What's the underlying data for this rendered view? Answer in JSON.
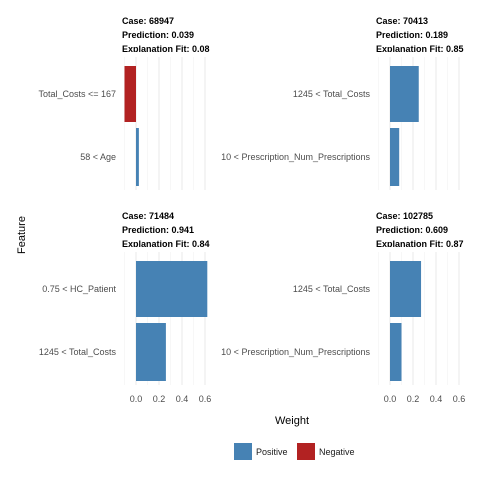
{
  "y_axis_label": "Feature",
  "x_axis_label": "Weight",
  "legend": {
    "items": [
      {
        "label": "Positive",
        "color": "#4682B4"
      },
      {
        "label": "Negative",
        "color": "#B22222"
      }
    ]
  },
  "chart_data": {
    "type": "bar",
    "orientation": "horizontal",
    "grid": true,
    "xlabel": "Weight",
    "ylabel": "Feature",
    "xlim": [
      -0.1,
      0.6
    ],
    "x_ticks": [
      "0.0",
      "0.2",
      "0.4",
      "0.6"
    ],
    "x_tick_values": [
      0.0,
      0.2,
      0.4,
      0.6
    ],
    "legend_placement": "bottom",
    "panels": [
      {
        "case": "Case: 68947",
        "prediction": "Prediction: 0.039",
        "fit": "Explanation Fit: 0.08",
        "bars": [
          {
            "label": "Total_Costs <= 167",
            "value": -0.1,
            "sign": "Negative"
          },
          {
            "label": "58 < Age",
            "value": 0.025,
            "sign": "Positive"
          }
        ]
      },
      {
        "case": "Case: 70413",
        "prediction": "Prediction: 0.189",
        "fit": "Explanation Fit: 0.85",
        "bars": [
          {
            "label": "1245 < Total_Costs",
            "value": 0.25,
            "sign": "Positive"
          },
          {
            "label": "10 < Prescription_Num_Prescriptions",
            "value": 0.08,
            "sign": "Positive"
          }
        ]
      },
      {
        "case": "Case: 71484",
        "prediction": "Prediction: 0.941",
        "fit": "Explanation Fit: 0.84",
        "bars": [
          {
            "label": "0.75 < HC_Patient",
            "value": 0.62,
            "sign": "Positive"
          },
          {
            "label": "1245 < Total_Costs",
            "value": 0.26,
            "sign": "Positive"
          }
        ]
      },
      {
        "case": "Case: 102785",
        "prediction": "Prediction: 0.609",
        "fit": "Explanation Fit: 0.87",
        "bars": [
          {
            "label": "1245 < Total_Costs",
            "value": 0.27,
            "sign": "Positive"
          },
          {
            "label": "10 < Prescription_Num_Prescriptions",
            "value": 0.1,
            "sign": "Positive"
          }
        ]
      }
    ]
  }
}
